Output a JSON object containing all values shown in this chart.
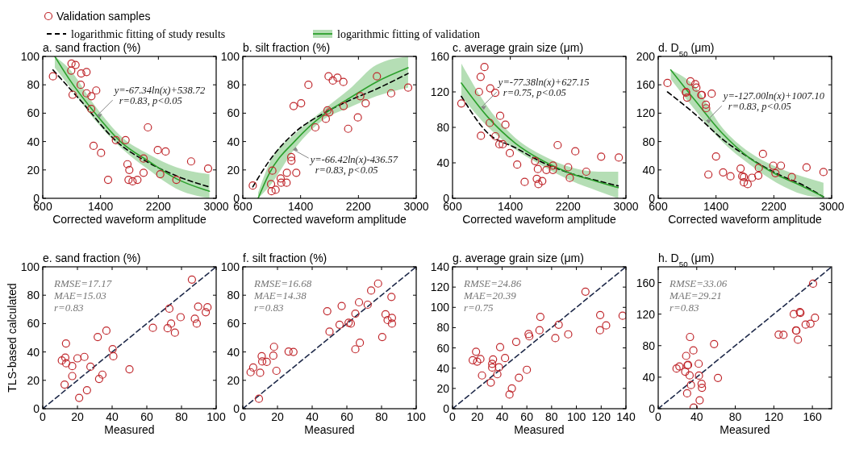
{
  "chart_data": [
    {
      "type": "scatter",
      "title": "a. sand fraction (%)",
      "xlabel": "Corrected waveform amplitude",
      "xlim": [
        600,
        3000
      ],
      "xticks": [
        600,
        1400,
        2200,
        3000
      ],
      "ylim": [
        0,
        100
      ],
      "yticks": [
        0,
        20,
        40,
        60,
        80,
        100
      ],
      "legend": "top",
      "annotations": [
        {
          "text": "y=-67.34ln(x)+538.72\nr=0.83, p<0.05",
          "x": 1344,
          "y": 59
        }
      ],
      "series": [
        {
          "type": "scatter",
          "name": "Validation samples",
          "marker": "circle",
          "color": "#c0282d",
          "x": [
            741,
            998,
            1054,
            994,
            1132,
            1206,
            1125,
            1013,
            1206,
            1273,
            1340,
            1270,
            1303,
            1407,
            1504,
            1612,
            1746,
            1772,
            1798,
            1787,
            1843,
            1910,
            1995,
            1995,
            2055,
            2192,
            2300,
            2226,
            2449,
            2653,
            2888
          ],
          "values": [
            86,
            95,
            94,
            90,
            88,
            89,
            80,
            73,
            74,
            72,
            76,
            63,
            37,
            32,
            13,
            41,
            41,
            24,
            20,
            13,
            12,
            13,
            18,
            28,
            50,
            34,
            33,
            17,
            13,
            26,
            21
          ]
        },
        {
          "type": "line",
          "name": "logarithmic fitting of study results",
          "color": "#000000",
          "line_style": "dashed",
          "x": [
            741,
            1139,
            1623,
            2069,
            2441,
            2906
          ],
          "values": [
            90.5,
            68,
            40,
            25,
            16,
            8
          ]
        },
        {
          "type": "line",
          "name": "logarithmic fitting of validation",
          "color": "#2ca02c",
          "line_style": "solid",
          "x": [
            767,
            953,
            1325,
            1697,
            2069,
            2441,
            2906
          ],
          "values": [
            100,
            85,
            60,
            39,
            26,
            14,
            5
          ],
          "lower": [
            92,
            80,
            55,
            35,
            20,
            7,
            0
          ],
          "upper": [
            100,
            92,
            65,
            43,
            31,
            22,
            17
          ]
        }
      ]
    },
    {
      "type": "scatter",
      "title": "b. silt fraction (%)",
      "xlabel": "Corrected waveform amplitude",
      "xlim": [
        600,
        3000
      ],
      "xticks": [
        600,
        1400,
        2200,
        3000
      ],
      "ylim": [
        0,
        100
      ],
      "yticks": [
        0,
        20,
        40,
        60,
        80,
        100
      ],
      "annotations": [
        {
          "text": "y=-66.42ln(x)-436.57\nr=0.83, p<0.05",
          "x": 1288,
          "y": 34
        }
      ],
      "series": [
        {
          "type": "scatter",
          "marker": "circle",
          "color": "#c0282d",
          "x": [
            738,
            1009,
            991,
            998,
            1054,
            1124,
            1132,
            1206,
            1210,
            1270,
            1273,
            1340,
            1303,
            1407,
            1508,
            1604,
            1749,
            1772,
            1798,
            1787,
            1846,
            1910,
            1995,
            1992,
            2058,
            2192,
            2226,
            2300,
            2456,
            2653,
            2888
          ],
          "values": [
            9,
            19.5,
            10,
            5,
            6,
            14,
            11,
            11,
            18,
            29,
            26.5,
            18,
            65,
            67,
            80,
            50,
            56,
            62,
            60.6,
            86,
            83,
            85,
            65,
            82,
            49,
            57,
            72,
            67,
            86,
            74,
            78
          ]
        },
        {
          "type": "line",
          "color": "#000000",
          "line_style": "dashed",
          "x": [
            738,
            961,
            1333,
            1705,
            2077,
            2449,
            2888
          ],
          "values": [
            8,
            26,
            47,
            59.5,
            69,
            77,
            88
          ]
        },
        {
          "type": "line",
          "color": "#2ca02c",
          "line_style": "solid",
          "x": [
            812,
            961,
            1333,
            1705,
            2077,
            2449,
            2888
          ],
          "values": [
            0,
            17,
            41,
            58.5,
            70.6,
            82,
            92
          ],
          "lower": [
            0,
            8,
            36,
            55,
            64,
            72,
            78
          ],
          "upper": [
            4,
            24,
            46,
            62,
            77,
            94,
            100
          ]
        }
      ]
    },
    {
      "type": "scatter",
      "title": "c. average grain size (μm)",
      "xlabel": "Corrected waveform amplitude",
      "xlim": [
        600,
        3000
      ],
      "xticks": [
        600,
        1400,
        2200,
        3000
      ],
      "ylim": [
        0,
        160
      ],
      "yticks": [
        0,
        40,
        80,
        120,
        160
      ],
      "annotations": [
        {
          "text": "y=-77.38ln(x)+627.15\nr=0.75, p<0.05",
          "x": 989,
          "y": 103.5
        }
      ],
      "series": [
        {
          "type": "scatter",
          "marker": "circle",
          "color": "#c0282d",
          "x": [
            722,
            989,
            1042,
            966,
            993,
            1122,
            1191,
            1115,
            1194,
            1259,
            1248,
            1294,
            1332,
            1393,
            1495,
            1598,
            1743,
            1781,
            1766,
            1789,
            1842,
            1899,
            1990,
            1990,
            2055,
            2200,
            2223,
            2299,
            2451,
            2657,
            2901
          ],
          "values": [
            107,
            137,
            148,
            120,
            70.5,
            124,
            119,
            85,
            70,
            93,
            61,
            61,
            83,
            51,
            38,
            18.5,
            42,
            33,
            22,
            16,
            19.5,
            32,
            32,
            37,
            60,
            35,
            23,
            53,
            30,
            47,
            46
          ]
        },
        {
          "type": "line",
          "color": "#000000",
          "line_style": "dashed",
          "x": [
            722,
            1095,
            1471,
            1857,
            2238,
            2619,
            2893
          ],
          "values": [
            115,
            73,
            57,
            40,
            28,
            19.5,
            14
          ]
        },
        {
          "type": "line",
          "color": "#2ca02c",
          "line_style": "solid",
          "x": [
            722,
            1095,
            1471,
            1857,
            2238,
            2619,
            2893
          ],
          "values": [
            130,
            91,
            62,
            42,
            28,
            18.5,
            12
          ],
          "lower": [
            115,
            80,
            55,
            36,
            20,
            8,
            0
          ],
          "upper": [
            152,
            102,
            68,
            48,
            35,
            30,
            30
          ]
        }
      ]
    },
    {
      "type": "scatter",
      "title": "d. D$_{50}$ (μm)",
      "xlabel": "Corrected waveform amplitude",
      "xlim": [
        600,
        3000
      ],
      "xticks": [
        600,
        1400,
        2200,
        3000
      ],
      "ylim": [
        0,
        200
      ],
      "yticks": [
        0,
        40,
        80,
        120,
        160,
        200
      ],
      "annotations": [
        {
          "text": "y=-127.00ln(x)+1007.10\nr=0.83, p<0.05",
          "x": 1257,
          "y": 110
        }
      ],
      "series": [
        {
          "type": "scatter",
          "marker": "circle",
          "color": "#c0282d",
          "x": [
            728,
            985,
            985,
            1000,
            1046,
            1113,
            1128,
            1196,
            1204,
            1260,
            1264,
            1340,
            1294,
            1400,
            1498,
            1600,
            1740,
            1762,
            1785,
            1785,
            1838,
            1898,
            1985,
            1992,
            2049,
            2192,
            2222,
            2298,
            2449,
            2653,
            2887
          ],
          "values": [
            162.6,
            150,
            149,
            142,
            165,
            161,
            156,
            145.5,
            145.5,
            132,
            127,
            147.5,
            33.5,
            59,
            36.6,
            31,
            42,
            31,
            30,
            22.5,
            20,
            29,
            32,
            43,
            62.6,
            46,
            35.4,
            46,
            30,
            43.6,
            37
          ]
        },
        {
          "type": "line",
          "color": "#000000",
          "line_style": "dashed",
          "x": [
            728,
            1106,
            1483,
            1861,
            2238,
            2615,
            2887
          ],
          "values": [
            150,
            119,
            84,
            57,
            35,
            18,
            2
          ]
        },
        {
          "type": "line",
          "color": "#2ca02c",
          "line_style": "solid",
          "x": [
            774,
            1106,
            1483,
            1861,
            2238,
            2615,
            2887
          ],
          "values": [
            181,
            138.5,
            92,
            57,
            33.5,
            16,
            2.3
          ],
          "lower": [
            168,
            125,
            80,
            48,
            22,
            5,
            0
          ],
          "upper": [
            181,
            158,
            100,
            65,
            44,
            30,
            22
          ]
        }
      ]
    },
    {
      "type": "scatter",
      "title": "e. sand fraction (%)",
      "xlabel": "Measured",
      "ylabel": "TLS-based calculated",
      "xlim": [
        0,
        100
      ],
      "xticks": [
        0,
        20,
        40,
        60,
        80,
        100
      ],
      "ylim": [
        0,
        100
      ],
      "yticks": [
        0,
        20,
        40,
        60,
        80,
        100
      ],
      "annotations": [
        "RMSE=17.17",
        "MAE=15.03",
        "r=0.83"
      ],
      "series": [
        {
          "type": "scatter",
          "marker": "circle",
          "color": "#c0282d",
          "x": [
            11,
            13,
            13.5,
            13.4,
            12.6,
            17,
            17,
            20,
            24,
            21,
            25.5,
            27.5,
            31.7,
            32.5,
            34.4,
            36.7,
            40.3,
            40.7,
            50,
            63.5,
            72,
            73,
            74,
            76.2,
            79.5,
            86,
            87.7,
            88.8,
            89.6,
            94,
            95
          ],
          "values": [
            34,
            36,
            32,
            46,
            17,
            30,
            23,
            35.5,
            36.5,
            7.6,
            13,
            29.6,
            50.5,
            21,
            24,
            55,
            42,
            37,
            27.8,
            57,
            56.7,
            70.5,
            60,
            53.6,
            64.5,
            91,
            63.4,
            60,
            72,
            68,
            71.5
          ]
        },
        {
          "type": "line",
          "color": "#1f2a4a",
          "line_style": "dashed",
          "x": [
            0,
            100
          ],
          "values": [
            0,
            100
          ]
        }
      ]
    },
    {
      "type": "scatter",
      "title": "f. silt fraction (%)",
      "xlabel": "Measured",
      "xlim": [
        0,
        100
      ],
      "xticks": [
        0,
        20,
        40,
        60,
        80,
        100
      ],
      "ylim": [
        0,
        100
      ],
      "yticks": [
        0,
        20,
        40,
        60,
        80,
        100
      ],
      "annotations": [
        "RMSE=16.68",
        "MAE=14.38",
        "r=0.83"
      ],
      "series": [
        {
          "type": "scatter",
          "marker": "circle",
          "color": "#c0282d",
          "x": [
            4.5,
            6,
            10,
            9.3,
            10.9,
            11.2,
            13.8,
            17.6,
            18,
            19.4,
            26.4,
            29.2,
            48.7,
            50,
            55.8,
            57,
            61,
            62.3,
            64.9,
            64.9,
            67,
            67.5,
            72,
            74,
            78,
            80.4,
            82.3,
            83.5,
            85.7,
            86,
            86
          ],
          "values": [
            25.7,
            29,
            25.3,
            7,
            37,
            33.3,
            33,
            37.4,
            43.6,
            26.7,
            40.3,
            40,
            68.7,
            54.3,
            59.2,
            72.4,
            60.6,
            60,
            41.9,
            67,
            75,
            46.5,
            73.3,
            83.3,
            88.2,
            50.5,
            66.5,
            62.5,
            78.8,
            64,
            60
          ]
        },
        {
          "type": "line",
          "color": "#1f2a4a",
          "line_style": "dashed",
          "x": [
            0,
            100
          ],
          "values": [
            0,
            100
          ]
        }
      ]
    },
    {
      "type": "scatter",
      "title": "g. average grain size (μm)",
      "xlabel": "Measured",
      "xlim": [
        0,
        140
      ],
      "xticks": [
        0,
        20,
        40,
        60,
        80,
        100,
        120,
        140
      ],
      "ylim": [
        0,
        140
      ],
      "yticks": [
        0,
        20,
        40,
        60,
        80,
        100,
        120,
        140
      ],
      "annotations": [
        "RMSE=24.86",
        "MAE=20.39",
        "r=0.75"
      ],
      "series": [
        {
          "type": "scatter",
          "marker": "circle",
          "color": "#c0282d",
          "x": [
            16.3,
            19,
            19.9,
            22.5,
            23.8,
            30.9,
            32,
            32.7,
            32,
            36.2,
            37.5,
            38.4,
            42.4,
            46,
            47.9,
            51.4,
            53.6,
            60,
            61.4,
            62,
            70.2,
            70.9,
            83,
            85.7,
            93.4,
            107.3,
            119.2,
            119,
            124,
            137.3
          ],
          "values": [
            47.9,
            56.2,
            46.5,
            49,
            32.8,
            25.8,
            44.3,
            48.7,
            40.6,
            34,
            40.8,
            60.8,
            50,
            14,
            20,
            66,
            30.6,
            38.4,
            73.6,
            71.4,
            77.4,
            90.6,
            69.7,
            82.9,
            73.4,
            115.5,
            92.4,
            77.4,
            82.2,
            91.7
          ]
        },
        {
          "type": "line",
          "color": "#1f2a4a",
          "line_style": "dashed",
          "x": [
            0,
            140
          ],
          "values": [
            0,
            140
          ]
        }
      ]
    },
    {
      "type": "scatter",
      "title": "h. D$_{50}$ (μm)",
      "xlabel": "Measured",
      "xlim": [
        0,
        180
      ],
      "xticks": [
        0,
        40,
        80,
        120,
        160
      ],
      "ylim": [
        0,
        180
      ],
      "yticks": [
        0,
        40,
        80,
        120,
        160
      ],
      "annotations": [
        "RMSE=33.06",
        "MAE=29.21",
        "r=0.83"
      ],
      "series": [
        {
          "type": "scatter",
          "marker": "circle",
          "color": "#c0282d",
          "x": [
            19,
            22,
            28,
            29,
            30.4,
            31,
            30,
            32.6,
            33,
            34,
            36.5,
            42,
            42.3,
            43,
            36.8,
            45,
            45.4,
            58,
            62,
            125,
            130,
            140.7,
            143,
            143.4,
            145,
            147,
            147.6,
            153,
            158,
            160.7,
            162.7
          ],
          "values": [
            51,
            53.6,
            47,
            67,
            55,
            55.6,
            19.5,
            42.3,
            91,
            30,
            74,
            57,
            42,
            10.7,
            1.4,
            31.6,
            26.5,
            82,
            39,
            94,
            93.7,
            120,
            99.3,
            99,
            87.5,
            122.6,
            121.6,
            106.7,
            107.8,
            158.6,
            115.4
          ]
        },
        {
          "type": "line",
          "color": "#1f2a4a",
          "line_style": "dashed",
          "x": [
            0,
            180
          ],
          "values": [
            0,
            180
          ]
        }
      ]
    }
  ]
}
